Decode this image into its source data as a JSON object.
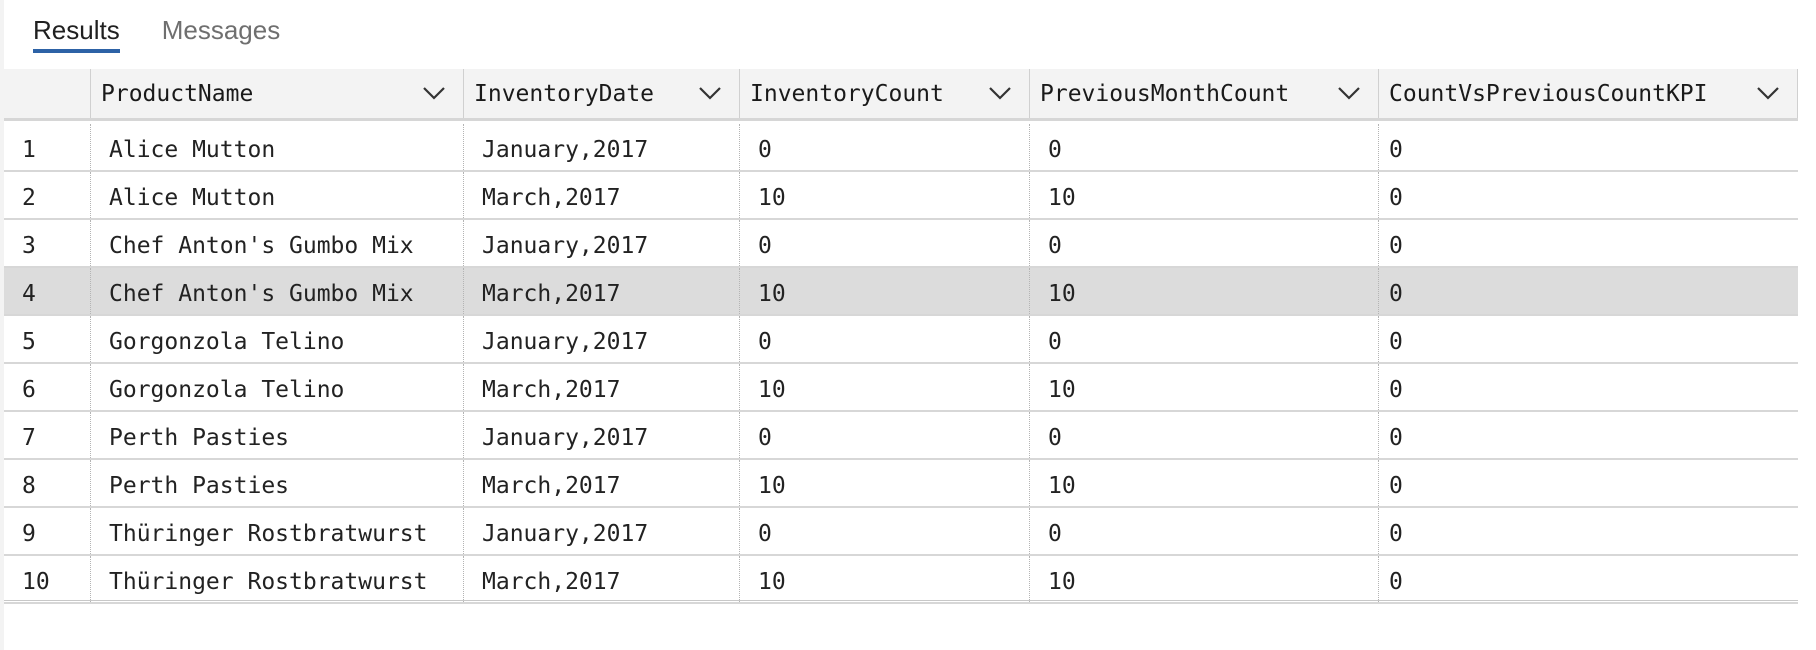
{
  "tabs": [
    {
      "label": "Results",
      "active": true
    },
    {
      "label": "Messages",
      "active": false
    }
  ],
  "grid": {
    "columns": [
      "ProductName",
      "InventoryDate",
      "InventoryCount",
      "PreviousMonthCount",
      "CountVsPreviousCountKPI"
    ],
    "selected_row": 4,
    "rows": [
      {
        "num": "1",
        "cells": [
          "Alice Mutton",
          "January,2017",
          "0",
          "0",
          "0"
        ]
      },
      {
        "num": "2",
        "cells": [
          "Alice Mutton",
          "March,2017",
          "10",
          "10",
          "0"
        ]
      },
      {
        "num": "3",
        "cells": [
          "Chef Anton's Gumbo Mix",
          "January,2017",
          "0",
          "0",
          "0"
        ]
      },
      {
        "num": "4",
        "cells": [
          "Chef Anton's Gumbo Mix",
          "March,2017",
          "10",
          "10",
          "0"
        ]
      },
      {
        "num": "5",
        "cells": [
          "Gorgonzola Telino",
          "January,2017",
          "0",
          "0",
          "0"
        ]
      },
      {
        "num": "6",
        "cells": [
          "Gorgonzola Telino",
          "March,2017",
          "10",
          "10",
          "0"
        ]
      },
      {
        "num": "7",
        "cells": [
          "Perth Pasties",
          "January,2017",
          "0",
          "0",
          "0"
        ]
      },
      {
        "num": "8",
        "cells": [
          "Perth Pasties",
          "March,2017",
          "10",
          "10",
          "0"
        ]
      },
      {
        "num": "9",
        "cells": [
          "Thüringer Rostbratwurst",
          "January,2017",
          "0",
          "0",
          "0"
        ]
      },
      {
        "num": "10",
        "cells": [
          "Thüringer Rostbratwurst",
          "March,2017",
          "10",
          "10",
          "0"
        ]
      }
    ]
  },
  "icons": {
    "column_menu": "chevron-down-icon"
  },
  "colors": {
    "active_tab_underline": "#2d62a6",
    "selected_row": "#dcdcdc",
    "header_bg": "#f3f3f3"
  }
}
